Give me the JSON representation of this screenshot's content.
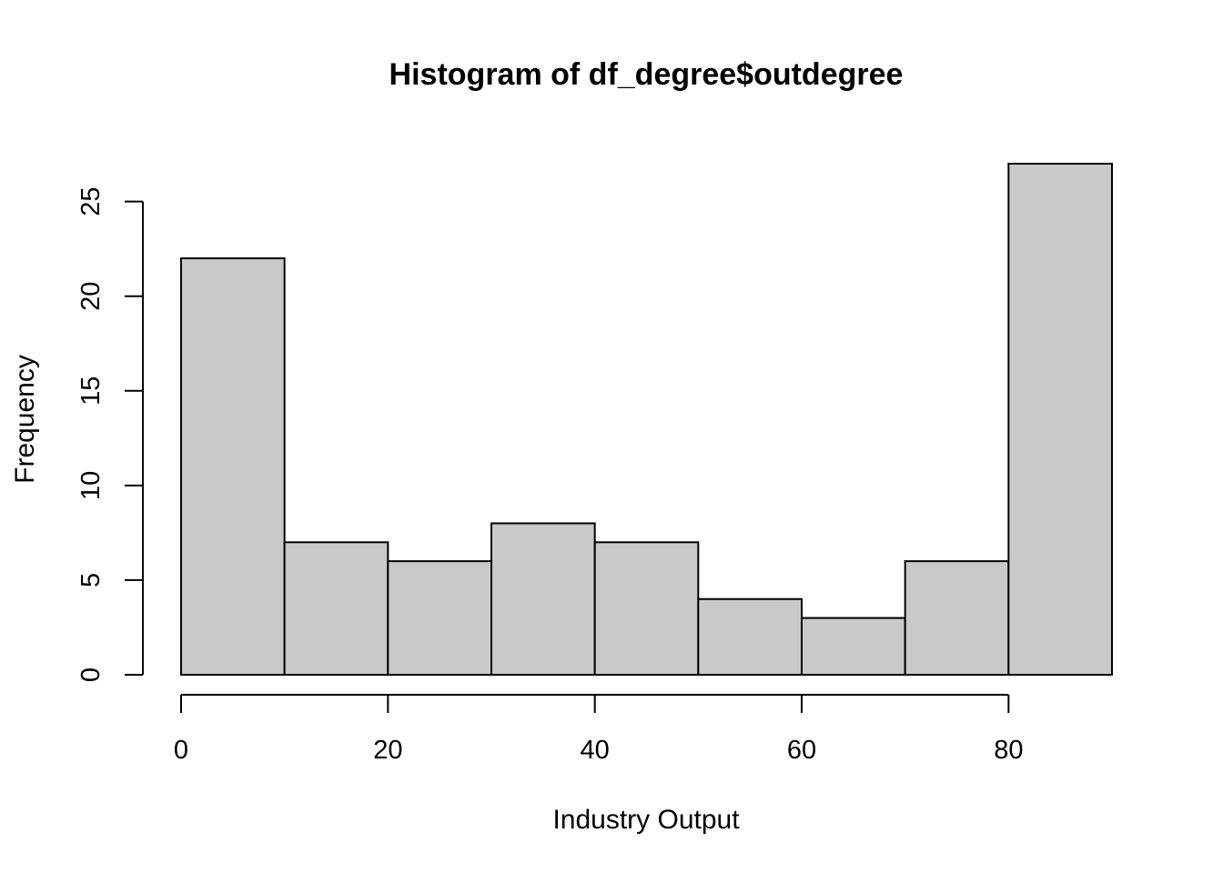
{
  "chart_data": {
    "type": "bar",
    "title": "Histogram of df_degree$outdegree",
    "xlabel": "Industry Output",
    "ylabel": "Frequency",
    "bins": [
      {
        "start": 0,
        "end": 10,
        "count": 22
      },
      {
        "start": 10,
        "end": 20,
        "count": 7
      },
      {
        "start": 20,
        "end": 30,
        "count": 6
      },
      {
        "start": 30,
        "end": 40,
        "count": 8
      },
      {
        "start": 40,
        "end": 50,
        "count": 7
      },
      {
        "start": 50,
        "end": 60,
        "count": 4
      },
      {
        "start": 60,
        "end": 70,
        "count": 3
      },
      {
        "start": 70,
        "end": 80,
        "count": 6
      },
      {
        "start": 80,
        "end": 90,
        "count": 27
      }
    ],
    "xlim": [
      0,
      90
    ],
    "ylim": [
      0,
      27
    ],
    "x_ticks": [
      0,
      20,
      40,
      60,
      80
    ],
    "y_ticks": [
      0,
      5,
      10,
      15,
      20,
      25
    ],
    "grid": false,
    "bar_color": "#c9c9c9",
    "edge_color": "#000000"
  }
}
